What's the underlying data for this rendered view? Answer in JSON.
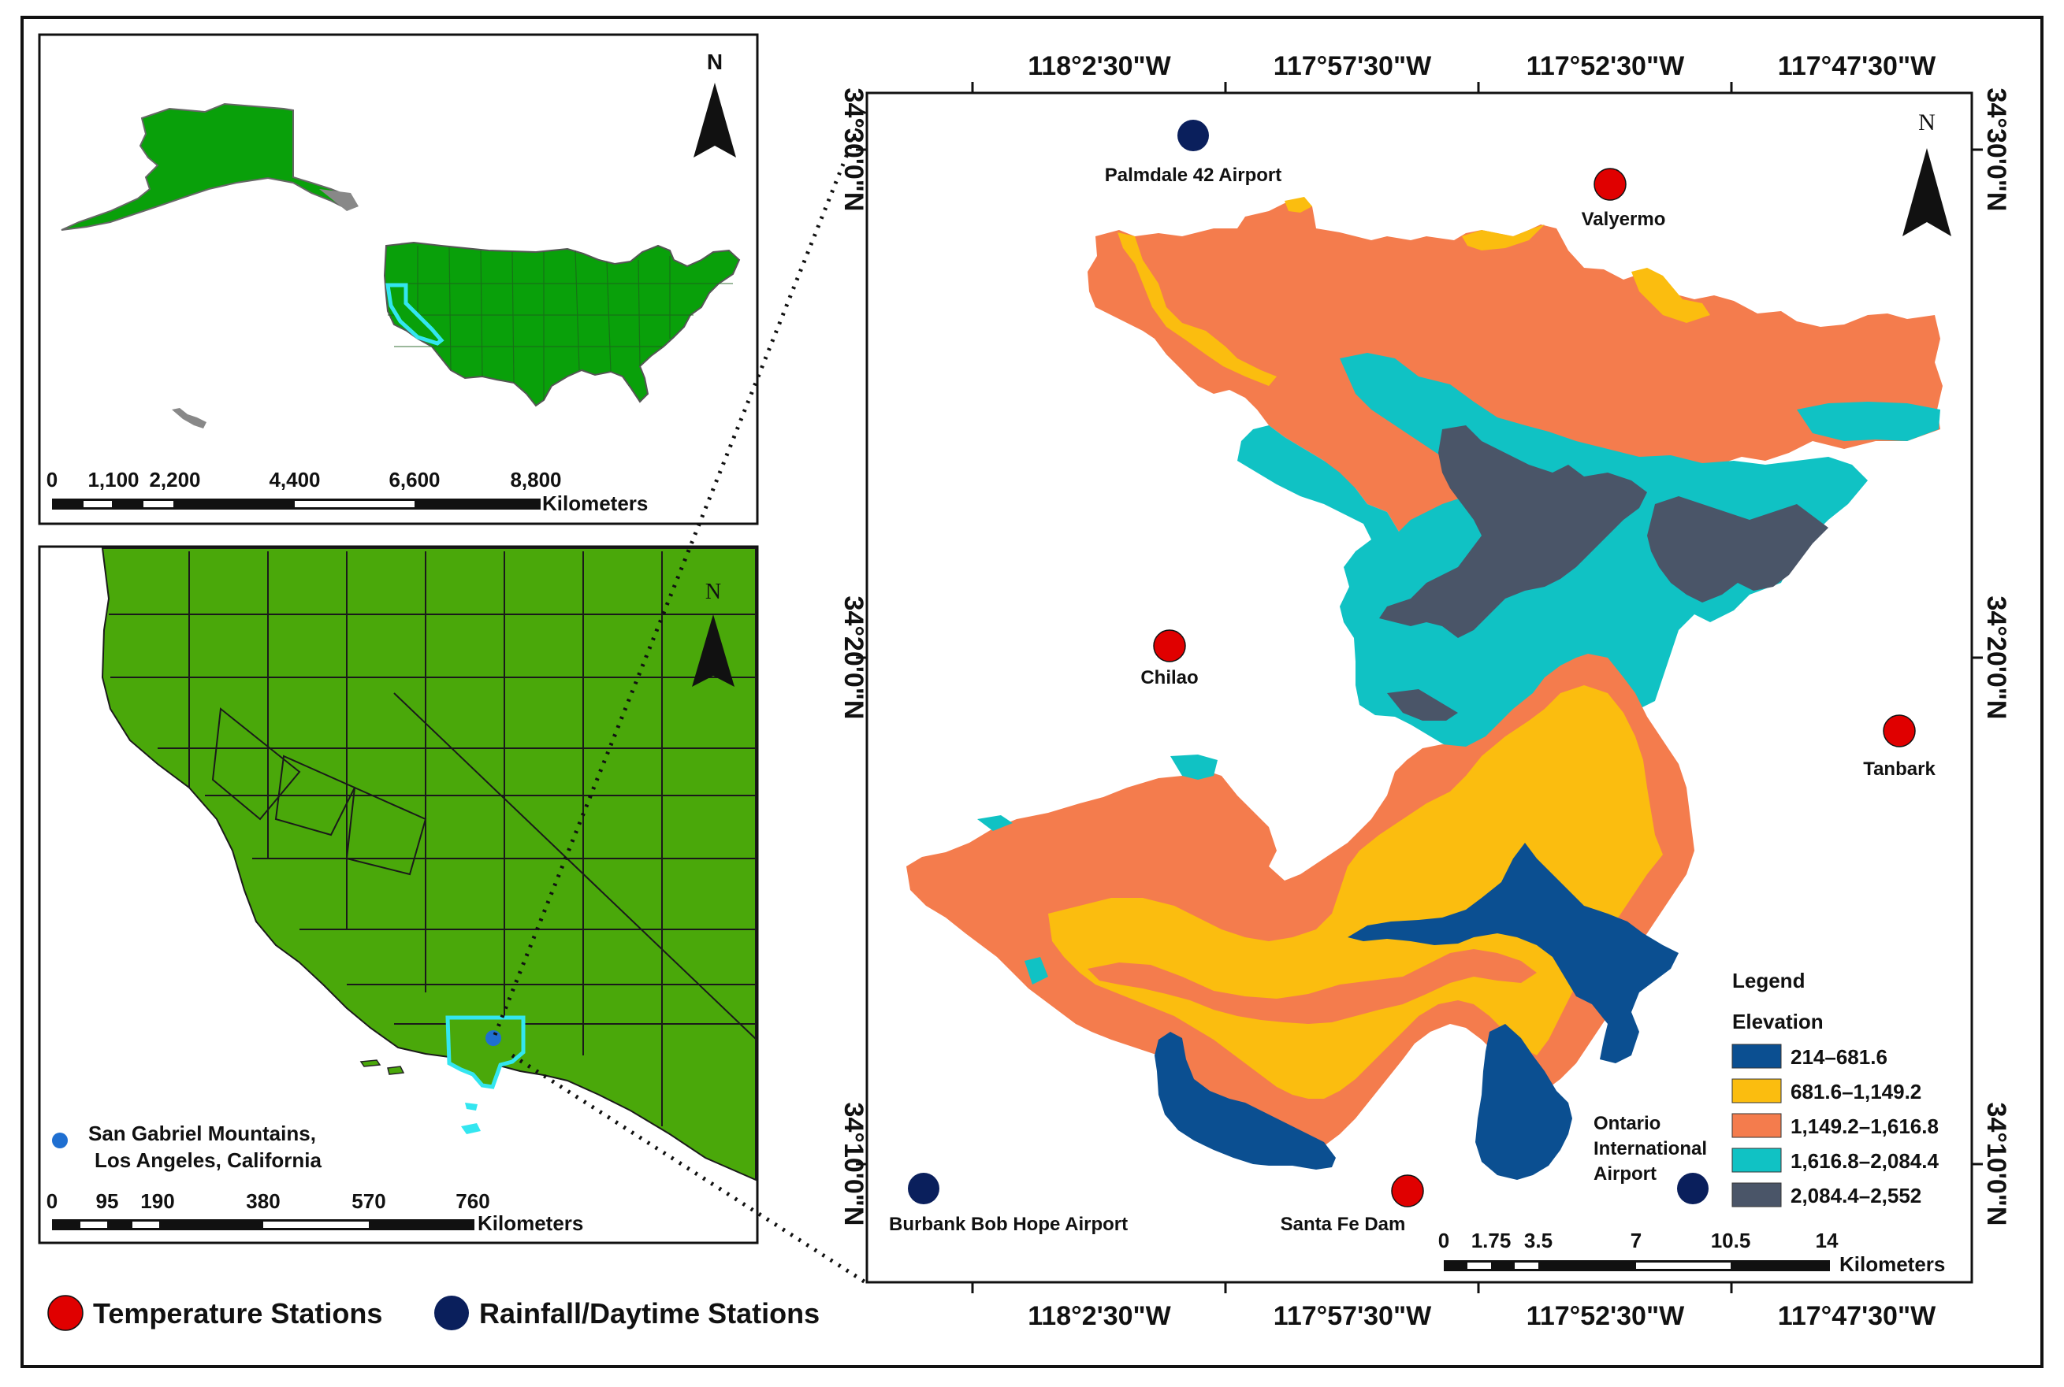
{
  "inset_us": {
    "north": "N",
    "scale_ticks": [
      "0",
      "1,100",
      "2,200",
      "4,400",
      "6,600",
      "8,800"
    ],
    "scale_unit": "Kilometers"
  },
  "inset_ca": {
    "north": "N",
    "study_area_label": [
      "San Gabriel Mountains,",
      "Los Angeles, California"
    ],
    "scale_ticks": [
      "0",
      "95",
      "190",
      "380",
      "570",
      "760"
    ],
    "scale_unit": "Kilometers"
  },
  "main_map": {
    "north": "N",
    "lon_labels": [
      "118°2'30\"W",
      "117°57'30\"W",
      "117°52'30\"W",
      "117°47'30\"W"
    ],
    "lat_labels": [
      "34°30'0\"N",
      "34°20'0\"N",
      "34°10'0\"N"
    ],
    "stations": {
      "palmdale": "Palmdale 42 Airport",
      "valyermo": "Valyermo",
      "chilao": "Chilao",
      "tanbark": "Tanbark",
      "burbank": "Burbank Bob Hope Airport",
      "santafe": "Santa Fe Dam",
      "ontario": [
        "Ontario",
        "International",
        "Airport"
      ]
    },
    "scale_ticks": [
      "0",
      "1.75",
      "3.5",
      "7",
      "10.5",
      "14"
    ],
    "scale_unit": "Kilometers"
  },
  "legend": {
    "title": "Legend",
    "subtitle": "Elevation",
    "classes": [
      {
        "label": "214–681.6",
        "color": "#0b4f91"
      },
      {
        "label": "681.6–1,149.2",
        "color": "#fbbd0f"
      },
      {
        "label": "1,149.2–1,616.8",
        "color": "#f47c4d"
      },
      {
        "label": "1,616.8–2,084.4",
        "color": "#10c2c4"
      },
      {
        "label": "2,084.4–2,552",
        "color": "#4a5568"
      }
    ]
  },
  "station_legend": {
    "temperature": "Temperature Stations",
    "rainfall": "Rainfall/Daytime Stations",
    "temperature_color": "#e00000",
    "rainfall_color": "#0a1f5c"
  },
  "colors": {
    "land_green": "#09a00a",
    "ca_green": "#4aa80a",
    "highlight": "#33e6f0"
  }
}
